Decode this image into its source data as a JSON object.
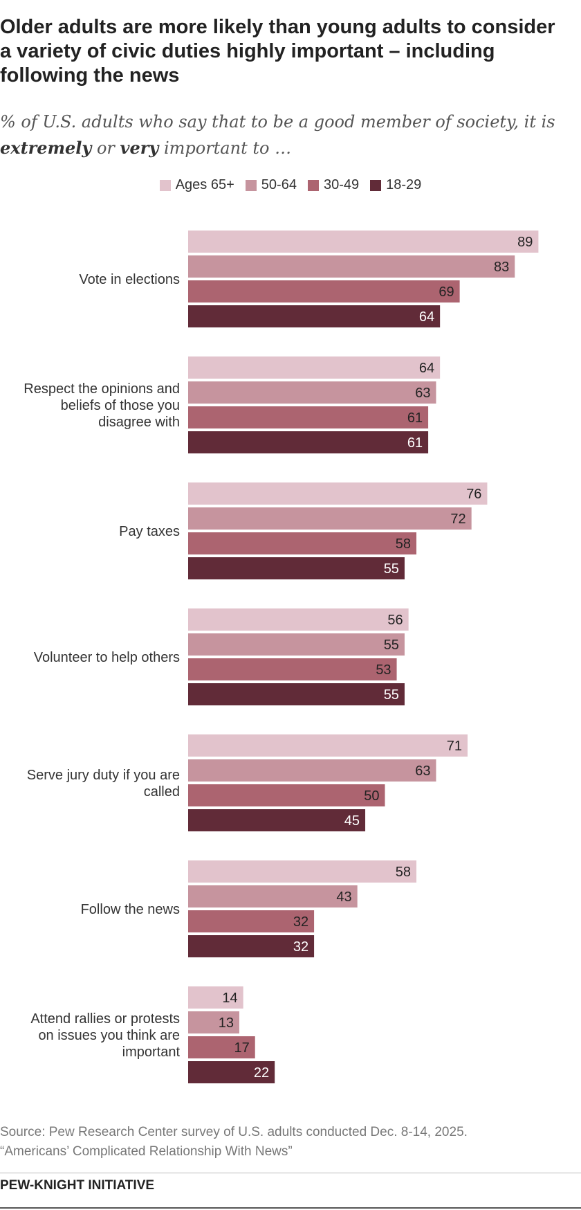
{
  "header": {
    "title": "Older adults are more likely than young adults to consider a variety of civic duties highly important – including following the news",
    "subtitle_pre": "% of U.S. adults who say that to be a good member of society, it is ",
    "subtitle_em1": "extremely",
    "subtitle_mid": " or ",
    "subtitle_em2": "very",
    "subtitle_post": " important to …"
  },
  "colors": {
    "series": [
      "#e2c3cc",
      "#c6949e",
      "#ac6470",
      "#612b38"
    ],
    "label_dark": "#222222",
    "label_light": "#ffffff"
  },
  "chart_data": {
    "type": "bar",
    "orientation": "horizontal",
    "xlim": [
      0,
      100
    ],
    "legend_position": "top-center",
    "grid": false,
    "categories": [
      "Vote in elections",
      "Respect the opinions and beliefs of those you disagree with",
      "Pay taxes",
      "Volunteer to help others",
      "Serve jury duty if you are called",
      "Follow the news",
      "Attend rallies or protests on issues you think are important"
    ],
    "category_lines": [
      [
        "Vote in elections"
      ],
      [
        "Respect the opinions and",
        "beliefs of those you",
        "disagree with"
      ],
      [
        "Pay taxes"
      ],
      [
        "Volunteer to help others"
      ],
      [
        "Serve jury duty if you are",
        "called"
      ],
      [
        "Follow the news"
      ],
      [
        "Attend rallies or protests",
        "on issues you think are",
        "important"
      ]
    ],
    "series": [
      {
        "name": "Ages 65+",
        "values": [
          89,
          64,
          76,
          56,
          71,
          58,
          14
        ]
      },
      {
        "name": "50-64",
        "values": [
          83,
          63,
          72,
          55,
          63,
          43,
          13
        ]
      },
      {
        "name": "30-49",
        "values": [
          69,
          61,
          58,
          53,
          50,
          32,
          17
        ]
      },
      {
        "name": "18-29",
        "values": [
          64,
          61,
          55,
          55,
          45,
          32,
          22
        ]
      }
    ]
  },
  "footer": {
    "source_line1": "Source: Pew Research Center survey of U.S. adults conducted Dec. 8-14, 2025.",
    "source_line2": "“Americans’ Complicated Relationship With News”",
    "brand": "PEW-KNIGHT INITIATIVE"
  }
}
